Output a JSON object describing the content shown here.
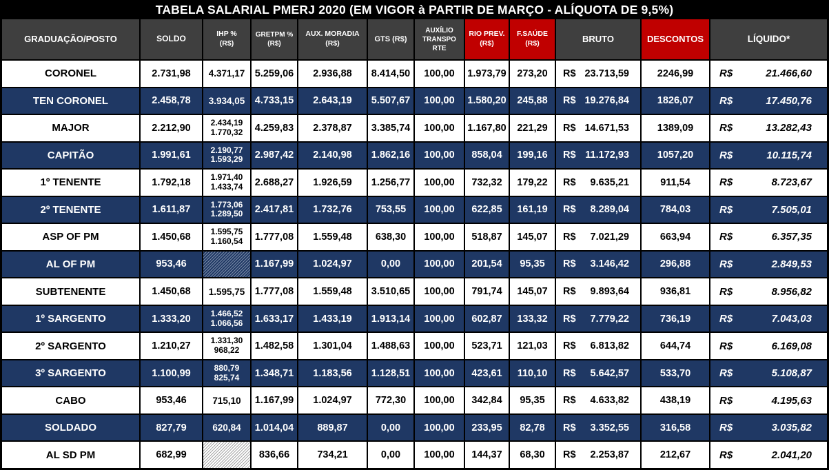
{
  "title": "TABELA SALARIAL PMERJ 2020 (EM VIGOR à PARTIR DE MARÇO - ALÍQUOTA DE 9,5%)",
  "currency_prefix": "R$",
  "colors": {
    "title_bg": "#000000",
    "header_bg": "#3F3F3F",
    "header_red_bg": "#C00000",
    "row_navy_bg": "#1F3864",
    "row_white_bg": "#FFFFFF"
  },
  "chart_data": {
    "type": "table",
    "title": "TABELA SALARIAL PMERJ 2020 (EM VIGOR à PARTIR DE MARÇO - ALÍQUOTA DE 9,5%)",
    "columns": [
      {
        "key": "posto",
        "label": "GRADUAÇÃO/POSTO",
        "style": "dark"
      },
      {
        "key": "soldo",
        "label": "SOLDO",
        "style": "dark"
      },
      {
        "key": "ihp",
        "label": "IHP %\n(R$)",
        "style": "dark"
      },
      {
        "key": "gretpm",
        "label": "GRETPM %\n(R$)",
        "style": "dark"
      },
      {
        "key": "aux_moradia",
        "label": "AUX. MORADIA\n(R$)",
        "style": "dark"
      },
      {
        "key": "gts",
        "label": "GTS (R$)",
        "style": "dark"
      },
      {
        "key": "aux_transporte",
        "label": "AUXÍLIO\nTRANSPO\nRTE",
        "style": "dark"
      },
      {
        "key": "rio_prev",
        "label": "RIO PREV.\n(R$)",
        "style": "red"
      },
      {
        "key": "f_saude",
        "label": "F.SAÚDE\n(R$)",
        "style": "red"
      },
      {
        "key": "bruto",
        "label": "BRUTO",
        "style": "dark",
        "prefix": "R$"
      },
      {
        "key": "descontos",
        "label": "DESCONTOS",
        "style": "red"
      },
      {
        "key": "liquido",
        "label": "LÍQUIDO*",
        "style": "dark",
        "prefix": "R$"
      }
    ],
    "rows": [
      {
        "posto": "CORONEL",
        "soldo": "2.731,98",
        "ihp": "4.371,17",
        "gretpm": "5.259,06",
        "aux_moradia": "2.936,88",
        "gts": "8.414,50",
        "aux_transporte": "100,00",
        "rio_prev": "1.973,79",
        "f_saude": "273,20",
        "bruto": "23.713,59",
        "descontos": "2246,99",
        "liquido": "21.466,60"
      },
      {
        "posto": "TEN CORONEL",
        "soldo": "2.458,78",
        "ihp": "3.934,05",
        "gretpm": "4.733,15",
        "aux_moradia": "2.643,19",
        "gts": "5.507,67",
        "aux_transporte": "100,00",
        "rio_prev": "1.580,20",
        "f_saude": "245,88",
        "bruto": "19.276,84",
        "descontos": "1826,07",
        "liquido": "17.450,76"
      },
      {
        "posto": "MAJOR",
        "soldo": "2.212,90",
        "ihp": "2.434,19\n1.770,32",
        "gretpm": "4.259,83",
        "aux_moradia": "2.378,87",
        "gts": "3.385,74",
        "aux_transporte": "100,00",
        "rio_prev": "1.167,80",
        "f_saude": "221,29",
        "bruto": "14.671,53",
        "descontos": "1389,09",
        "liquido": "13.282,43"
      },
      {
        "posto": "CAPITÃO",
        "soldo": "1.991,61",
        "ihp": "2.190,77\n1.593,29",
        "gretpm": "2.987,42",
        "aux_moradia": "2.140,98",
        "gts": "1.862,16",
        "aux_transporte": "100,00",
        "rio_prev": "858,04",
        "f_saude": "199,16",
        "bruto": "11.172,93",
        "descontos": "1057,20",
        "liquido": "10.115,74"
      },
      {
        "posto": "1º TENENTE",
        "soldo": "1.792,18",
        "ihp": "1.971,40\n1.433,74",
        "gretpm": "2.688,27",
        "aux_moradia": "1.926,59",
        "gts": "1.256,77",
        "aux_transporte": "100,00",
        "rio_prev": "732,32",
        "f_saude": "179,22",
        "bruto": "9.635,21",
        "descontos": "911,54",
        "liquido": "8.723,67"
      },
      {
        "posto": "2º TENENTE",
        "soldo": "1.611,87",
        "ihp": "1.773,06\n1.289,50",
        "gretpm": "2.417,81",
        "aux_moradia": "1.732,76",
        "gts": "753,55",
        "aux_transporte": "100,00",
        "rio_prev": "622,85",
        "f_saude": "161,19",
        "bruto": "8.289,04",
        "descontos": "784,03",
        "liquido": "7.505,01"
      },
      {
        "posto": "ASP OF PM",
        "soldo": "1.450,68",
        "ihp": "1.595,75\n1.160,54",
        "gretpm": "1.777,08",
        "aux_moradia": "1.559,48",
        "gts": "638,30",
        "aux_transporte": "100,00",
        "rio_prev": "518,87",
        "f_saude": "145,07",
        "bruto": "7.021,29",
        "descontos": "663,94",
        "liquido": "6.357,35"
      },
      {
        "posto": "AL OF PM",
        "soldo": "953,46",
        "ihp": null,
        "gretpm": "1.167,99",
        "aux_moradia": "1.024,97",
        "gts": "0,00",
        "aux_transporte": "100,00",
        "rio_prev": "201,54",
        "f_saude": "95,35",
        "bruto": "3.146,42",
        "descontos": "296,88",
        "liquido": "2.849,53"
      },
      {
        "posto": "SUBTENENTE",
        "soldo": "1.450,68",
        "ihp": "1.595,75",
        "gretpm": "1.777,08",
        "aux_moradia": "1.559,48",
        "gts": "3.510,65",
        "aux_transporte": "100,00",
        "rio_prev": "791,74",
        "f_saude": "145,07",
        "bruto": "9.893,64",
        "descontos": "936,81",
        "liquido": "8.956,82"
      },
      {
        "posto": "1º SARGENTO",
        "soldo": "1.333,20",
        "ihp": "1.466,52\n1.066,56",
        "gretpm": "1.633,17",
        "aux_moradia": "1.433,19",
        "gts": "1.913,14",
        "aux_transporte": "100,00",
        "rio_prev": "602,87",
        "f_saude": "133,32",
        "bruto": "7.779,22",
        "descontos": "736,19",
        "liquido": "7.043,03"
      },
      {
        "posto": "2º SARGENTO",
        "soldo": "1.210,27",
        "ihp": "1.331,30\n968,22",
        "gretpm": "1.482,58",
        "aux_moradia": "1.301,04",
        "gts": "1.488,63",
        "aux_transporte": "100,00",
        "rio_prev": "523,71",
        "f_saude": "121,03",
        "bruto": "6.813,82",
        "descontos": "644,74",
        "liquido": "6.169,08"
      },
      {
        "posto": "3º SARGENTO",
        "soldo": "1.100,99",
        "ihp": "880,79\n825,74",
        "gretpm": "1.348,71",
        "aux_moradia": "1.183,56",
        "gts": "1.128,51",
        "aux_transporte": "100,00",
        "rio_prev": "423,61",
        "f_saude": "110,10",
        "bruto": "5.642,57",
        "descontos": "533,70",
        "liquido": "5.108,87"
      },
      {
        "posto": "CABO",
        "soldo": "953,46",
        "ihp": "715,10",
        "gretpm": "1.167,99",
        "aux_moradia": "1.024,97",
        "gts": "772,30",
        "aux_transporte": "100,00",
        "rio_prev": "342,84",
        "f_saude": "95,35",
        "bruto": "4.633,82",
        "descontos": "438,19",
        "liquido": "4.195,63"
      },
      {
        "posto": "SOLDADO",
        "soldo": "827,79",
        "ihp": "620,84",
        "gretpm": "1.014,04",
        "aux_moradia": "889,87",
        "gts": "0,00",
        "aux_transporte": "100,00",
        "rio_prev": "233,95",
        "f_saude": "82,78",
        "bruto": "3.352,55",
        "descontos": "316,58",
        "liquido": "3.035,82"
      },
      {
        "posto": "AL SD PM",
        "soldo": "682,99",
        "ihp": null,
        "gretpm": "836,66",
        "aux_moradia": "734,21",
        "gts": "0,00",
        "aux_transporte": "100,00",
        "rio_prev": "144,37",
        "f_saude": "68,30",
        "bruto": "2.253,87",
        "descontos": "212,67",
        "liquido": "2.041,20"
      }
    ]
  }
}
